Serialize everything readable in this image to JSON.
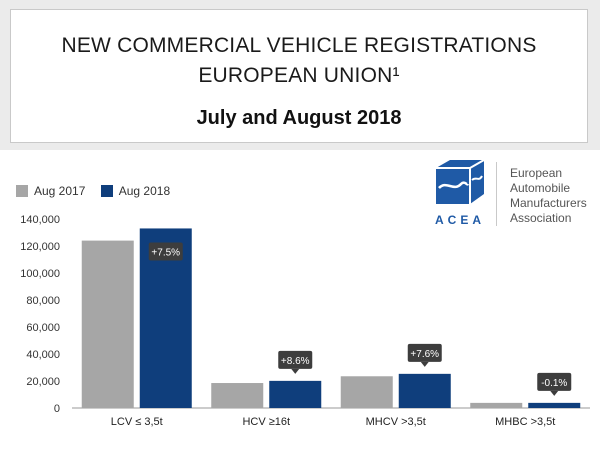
{
  "header": {
    "line1": "NEW COMMERCIAL VEHICLE REGISTRATIONS",
    "line2": "EUROPEAN UNION¹",
    "subtitle": "July and August 2018"
  },
  "logo": {
    "wordmark": "ACEA",
    "org_line1": "European",
    "org_line2": "Automobile",
    "org_line3": "Manufacturers",
    "org_line4": "Association"
  },
  "colors": {
    "aug2017": "#a6a6a6",
    "aug2018": "#0f3e7c",
    "label_bg": "#3d3d3d"
  },
  "chart_data": {
    "type": "bar",
    "categories": [
      "LCV ≤ 3,5t",
      "HCV ≥16t",
      "MHCV >3,5t",
      "MHBC >3,5t"
    ],
    "series": [
      {
        "name": "Aug 2017",
        "values": [
          124000,
          18500,
          23500,
          3800
        ]
      },
      {
        "name": "Aug 2018",
        "values": [
          133000,
          20100,
          25300,
          3800
        ]
      }
    ],
    "change_labels": [
      "+7.5%",
      "+8.6%",
      "+7.6%",
      "-0.1%"
    ],
    "ylim": [
      0,
      140000
    ],
    "yticks": [
      0,
      20000,
      40000,
      60000,
      80000,
      100000,
      120000,
      140000
    ],
    "ytick_labels": [
      "0",
      "20,000",
      "40,000",
      "60,000",
      "80,000",
      "100,000",
      "120,000",
      "140,000"
    ],
    "legend_position": "top-left",
    "grid": false
  }
}
